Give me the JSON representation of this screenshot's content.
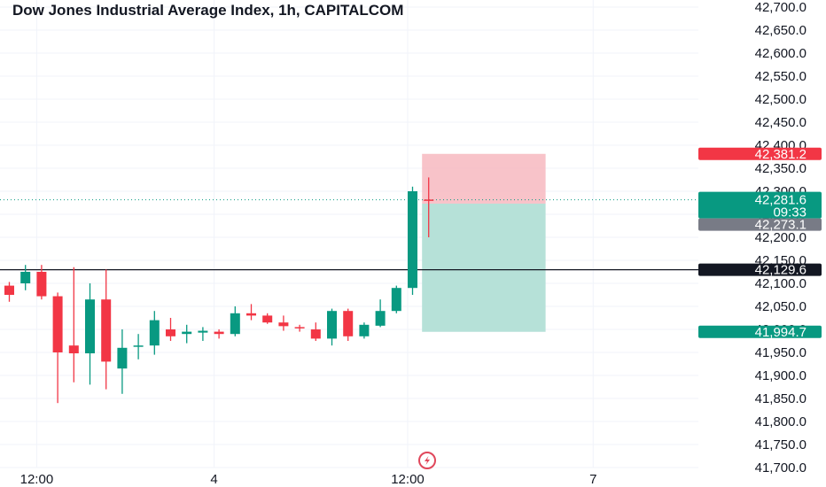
{
  "colors": {
    "up": "#089981",
    "down": "#f23645",
    "grid": "#f0f3fa",
    "axis_text": "#131722",
    "hline": "#131722",
    "last_price_line": "#089981",
    "stop_zone": "#f7b8bf",
    "target_zone": "#b2dfd6",
    "stop_tag": "#f23645",
    "price_tag": "#089981",
    "entry_tag": "#787b86",
    "hline_tag": "#131722",
    "target_tag": "#089981",
    "logo": "#e0475b"
  },
  "icons": {
    "logo": "lightning-logo-icon"
  },
  "chart_data": {
    "type": "candlestick",
    "title": "Dow Jones Industrial Average Index, 1h, CAPITALCOM",
    "ylim": [
      41700,
      42700
    ],
    "y_ticks": [
      "41,700.0",
      "41,750.0",
      "41,800.0",
      "41,850.0",
      "41,900.0",
      "41,950.0",
      "42,000.0",
      "42,050.0",
      "42,100.0",
      "42,150.0",
      "42,200.0",
      "42,250.0",
      "42,300.0",
      "42,350.0",
      "42,400.0",
      "42,450.0",
      "42,500.0",
      "42,550.0",
      "42,600.0",
      "42,650.0",
      "42,700.0"
    ],
    "x_ticks": [
      {
        "label": "12:00",
        "index": 2
      },
      {
        "label": "4",
        "index": 13
      },
      {
        "label": "12:00",
        "index": 25
      },
      {
        "label": "7",
        "index": 36.5
      }
    ],
    "candles": [
      {
        "o": 42095,
        "h": 42103,
        "l": 42060,
        "c": 42075
      },
      {
        "o": 42100,
        "h": 42140,
        "l": 42085,
        "c": 42125
      },
      {
        "o": 42125,
        "h": 42140,
        "l": 42065,
        "c": 42072
      },
      {
        "o": 42072,
        "h": 42080,
        "l": 41840,
        "c": 41950
      },
      {
        "o": 41965,
        "h": 42135,
        "l": 41885,
        "c": 41948
      },
      {
        "o": 41948,
        "h": 42100,
        "l": 41880,
        "c": 42065
      },
      {
        "o": 42065,
        "h": 42130,
        "l": 41870,
        "c": 41930
      },
      {
        "o": 41915,
        "h": 42000,
        "l": 41860,
        "c": 41960
      },
      {
        "o": 41963,
        "h": 41990,
        "l": 41935,
        "c": 41965
      },
      {
        "o": 41965,
        "h": 42040,
        "l": 41945,
        "c": 42020
      },
      {
        "o": 42000,
        "h": 42025,
        "l": 41975,
        "c": 41985
      },
      {
        "o": 41990,
        "h": 42010,
        "l": 41970,
        "c": 41995
      },
      {
        "o": 41993,
        "h": 42005,
        "l": 41975,
        "c": 41997
      },
      {
        "o": 41995,
        "h": 42000,
        "l": 41980,
        "c": 41990
      },
      {
        "o": 41990,
        "h": 42050,
        "l": 41985,
        "c": 42035
      },
      {
        "o": 42035,
        "h": 42055,
        "l": 42020,
        "c": 42030
      },
      {
        "o": 42030,
        "h": 42035,
        "l": 42012,
        "c": 42015
      },
      {
        "o": 42015,
        "h": 42030,
        "l": 41997,
        "c": 42007
      },
      {
        "o": 42005,
        "h": 42010,
        "l": 41995,
        "c": 42003
      },
      {
        "o": 42000,
        "h": 42015,
        "l": 41975,
        "c": 41980
      },
      {
        "o": 41980,
        "h": 42045,
        "l": 41965,
        "c": 42040
      },
      {
        "o": 42040,
        "h": 42045,
        "l": 41975,
        "c": 41985
      },
      {
        "o": 41985,
        "h": 42015,
        "l": 41980,
        "c": 42010
      },
      {
        "o": 42008,
        "h": 42065,
        "l": 42005,
        "c": 42040
      },
      {
        "o": 42040,
        "h": 42095,
        "l": 42035,
        "c": 42090
      },
      {
        "o": 42090,
        "h": 42310,
        "l": 42075,
        "c": 42300
      },
      {
        "o": 42282,
        "h": 42330,
        "l": 42200,
        "c": 42280
      }
    ],
    "horizontal_line": 42129.6,
    "last_price": 42281.6,
    "position": {
      "entry": 42273.1,
      "stop": 42381.2,
      "target": 41994.7,
      "start_index": 26,
      "end_index": 33
    },
    "price_tags": {
      "stop": "42,381.2",
      "last": "42,281.6",
      "countdown": "09:33",
      "entry": "42,273.1",
      "hline": "42,129.6",
      "target": "41,994.7"
    }
  }
}
